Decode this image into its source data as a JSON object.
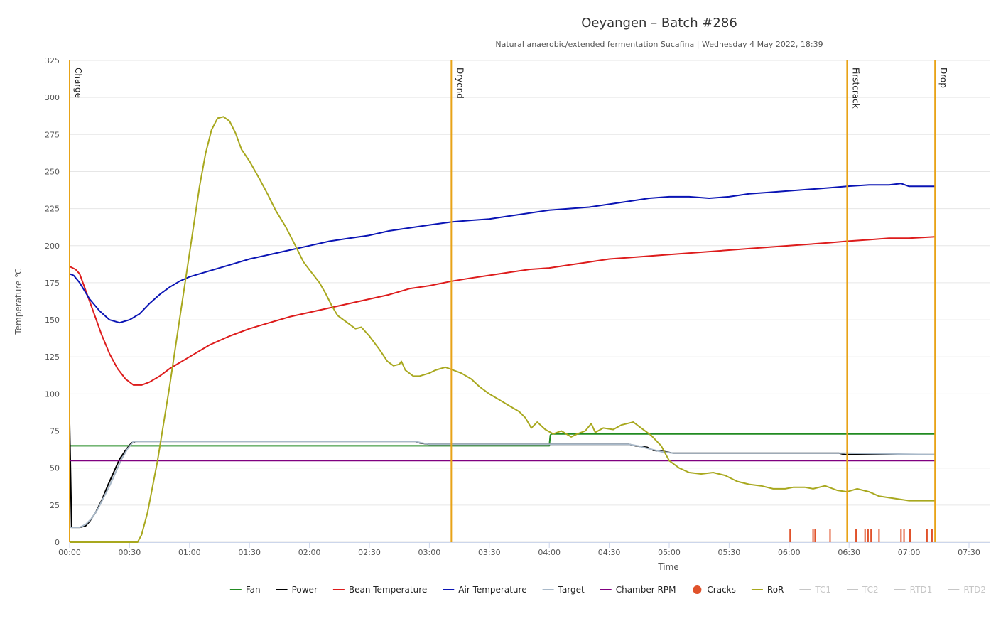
{
  "chart_data": {
    "type": "line",
    "title": "Oeyangen – Batch #286",
    "subtitle": "Natural anaerobic/extended fermentation Sucafina | Wednesday 4 May 2022, 18:39",
    "xlabel": "Time",
    "ylabel": "Temperature ℃",
    "xlim": [
      0,
      468
    ],
    "ylim": [
      0,
      325
    ],
    "x_ticks": [
      {
        "v": 0,
        "label": "00:00"
      },
      {
        "v": 30,
        "label": "00:30"
      },
      {
        "v": 60,
        "label": "01:00"
      },
      {
        "v": 90,
        "label": "01:30"
      },
      {
        "v": 120,
        "label": "02:00"
      },
      {
        "v": 150,
        "label": "02:30"
      },
      {
        "v": 180,
        "label": "03:00"
      },
      {
        "v": 210,
        "label": "03:30"
      },
      {
        "v": 240,
        "label": "04:00"
      },
      {
        "v": 270,
        "label": "04:30"
      },
      {
        "v": 300,
        "label": "05:00"
      },
      {
        "v": 330,
        "label": "05:30"
      },
      {
        "v": 360,
        "label": "06:00"
      },
      {
        "v": 390,
        "label": "06:30"
      },
      {
        "v": 420,
        "label": "07:00"
      },
      {
        "v": 450,
        "label": "07:30"
      }
    ],
    "y_ticks": [
      {
        "v": 0,
        "label": "0"
      },
      {
        "v": 25,
        "label": "25"
      },
      {
        "v": 50,
        "label": "50"
      },
      {
        "v": 75,
        "label": "75"
      },
      {
        "v": 100,
        "label": "100"
      },
      {
        "v": 125,
        "label": "125"
      },
      {
        "v": 150,
        "label": "150"
      },
      {
        "v": 175,
        "label": "175"
      },
      {
        "v": 200,
        "label": "200"
      },
      {
        "v": 225,
        "label": "225"
      },
      {
        "v": 250,
        "label": "250"
      },
      {
        "v": 275,
        "label": "275"
      },
      {
        "v": 300,
        "label": "300"
      },
      {
        "v": 325,
        "label": "325"
      }
    ],
    "grid": true,
    "legend_position": "bottom-right",
    "events": [
      {
        "label": "Charge",
        "x": 0
      },
      {
        "label": "Dryend",
        "x": 191
      },
      {
        "label": "Firstcrack",
        "x": 389
      },
      {
        "label": "Drop",
        "x": 433
      }
    ],
    "event_color": "#e8a317",
    "series": [
      {
        "name": "Fan",
        "color": "#228b22",
        "visible": true,
        "points": [
          [
            0,
            65
          ],
          [
            240,
            65
          ],
          [
            240.5,
            72
          ],
          [
            241,
            73
          ],
          [
            433,
            73
          ]
        ]
      },
      {
        "name": "Power",
        "color": "#000000",
        "visible": true,
        "points": [
          [
            0,
            80
          ],
          [
            1,
            10
          ],
          [
            5,
            10
          ],
          [
            8,
            11
          ],
          [
            10,
            14
          ],
          [
            13,
            20
          ],
          [
            16,
            28
          ],
          [
            19,
            38
          ],
          [
            22,
            47
          ],
          [
            25,
            56
          ],
          [
            28,
            62
          ],
          [
            31,
            67
          ],
          [
            33,
            68
          ],
          [
            173,
            68
          ],
          [
            175,
            67
          ],
          [
            180,
            66
          ],
          [
            237,
            66
          ],
          [
            270,
            66
          ],
          [
            280,
            66
          ],
          [
            283,
            65
          ],
          [
            289,
            64
          ],
          [
            292,
            62
          ],
          [
            298,
            61
          ],
          [
            302,
            60
          ],
          [
            385,
            60
          ],
          [
            388,
            59
          ],
          [
            433,
            59
          ]
        ]
      },
      {
        "name": "Bean Temperature",
        "color": "#dd1c1c",
        "visible": true,
        "points": [
          [
            0,
            186
          ],
          [
            3,
            184
          ],
          [
            5,
            181
          ],
          [
            8,
            170
          ],
          [
            12,
            155
          ],
          [
            16,
            140
          ],
          [
            20,
            127
          ],
          [
            24,
            117
          ],
          [
            28,
            110
          ],
          [
            32,
            106
          ],
          [
            36,
            106
          ],
          [
            40,
            108
          ],
          [
            45,
            112
          ],
          [
            50,
            117
          ],
          [
            60,
            125
          ],
          [
            70,
            133
          ],
          [
            80,
            139
          ],
          [
            90,
            144
          ],
          [
            100,
            148
          ],
          [
            110,
            152
          ],
          [
            120,
            155
          ],
          [
            130,
            158
          ],
          [
            140,
            161
          ],
          [
            150,
            164
          ],
          [
            160,
            167
          ],
          [
            170,
            171
          ],
          [
            180,
            173
          ],
          [
            191,
            176
          ],
          [
            200,
            178
          ],
          [
            210,
            180
          ],
          [
            220,
            182
          ],
          [
            230,
            184
          ],
          [
            240,
            185
          ],
          [
            250,
            187
          ],
          [
            260,
            189
          ],
          [
            270,
            191
          ],
          [
            280,
            192
          ],
          [
            290,
            193
          ],
          [
            300,
            194
          ],
          [
            320,
            196
          ],
          [
            340,
            198
          ],
          [
            360,
            200
          ],
          [
            380,
            202
          ],
          [
            389,
            203
          ],
          [
            400,
            204
          ],
          [
            410,
            205
          ],
          [
            420,
            205
          ],
          [
            433,
            206
          ]
        ]
      },
      {
        "name": "Air Temperature",
        "color": "#0a14b4",
        "visible": true,
        "points": [
          [
            0,
            181
          ],
          [
            2,
            180
          ],
          [
            5,
            175
          ],
          [
            10,
            164
          ],
          [
            15,
            156
          ],
          [
            20,
            150
          ],
          [
            25,
            148
          ],
          [
            30,
            150
          ],
          [
            35,
            154
          ],
          [
            40,
            161
          ],
          [
            45,
            167
          ],
          [
            50,
            172
          ],
          [
            55,
            176
          ],
          [
            60,
            179
          ],
          [
            70,
            183
          ],
          [
            80,
            187
          ],
          [
            90,
            191
          ],
          [
            100,
            194
          ],
          [
            110,
            197
          ],
          [
            120,
            200
          ],
          [
            130,
            203
          ],
          [
            140,
            205
          ],
          [
            150,
            207
          ],
          [
            160,
            210
          ],
          [
            170,
            212
          ],
          [
            180,
            214
          ],
          [
            191,
            216
          ],
          [
            200,
            217
          ],
          [
            210,
            218
          ],
          [
            220,
            220
          ],
          [
            230,
            222
          ],
          [
            240,
            224
          ],
          [
            250,
            225
          ],
          [
            260,
            226
          ],
          [
            270,
            228
          ],
          [
            280,
            230
          ],
          [
            290,
            232
          ],
          [
            300,
            233
          ],
          [
            310,
            233
          ],
          [
            320,
            232
          ],
          [
            330,
            233
          ],
          [
            340,
            235
          ],
          [
            350,
            236
          ],
          [
            360,
            237
          ],
          [
            370,
            238
          ],
          [
            380,
            239
          ],
          [
            389,
            240
          ],
          [
            400,
            241
          ],
          [
            410,
            241
          ],
          [
            416,
            242
          ],
          [
            420,
            240
          ],
          [
            425,
            240
          ],
          [
            433,
            240
          ]
        ]
      },
      {
        "name": "Target",
        "color": "#a9b9c9",
        "visible": true,
        "points": [
          [
            0,
            10
          ],
          [
            5,
            10
          ],
          [
            8,
            12
          ],
          [
            11,
            16
          ],
          [
            14,
            22
          ],
          [
            17,
            30
          ],
          [
            20,
            38
          ],
          [
            23,
            47
          ],
          [
            26,
            56
          ],
          [
            29,
            63
          ],
          [
            32,
            68
          ],
          [
            35,
            68
          ],
          [
            173,
            68
          ],
          [
            176,
            67
          ],
          [
            180,
            66
          ],
          [
            237,
            66
          ],
          [
            280,
            66
          ],
          [
            284,
            65
          ],
          [
            290,
            63
          ],
          [
            296,
            61
          ],
          [
            302,
            60
          ],
          [
            385,
            60
          ],
          [
            389,
            60
          ],
          [
            433,
            59
          ]
        ]
      },
      {
        "name": "Chamber RPM",
        "color": "#800080",
        "visible": true,
        "points": [
          [
            0,
            55
          ],
          [
            433,
            55
          ]
        ]
      },
      {
        "name": "Cracks",
        "color": "#e0522b",
        "visible": true,
        "marks": [
          360.5,
          372,
          373,
          380.5,
          393.5,
          398,
          399.5,
          401,
          405,
          416,
          417.5,
          420.5,
          429,
          431.5
        ],
        "mark_height": 9
      },
      {
        "name": "RoR",
        "color": "#a8a81e",
        "visible": true,
        "points": [
          [
            0,
            0
          ],
          [
            34,
            0
          ],
          [
            36,
            5
          ],
          [
            39,
            20
          ],
          [
            44,
            55
          ],
          [
            50,
            105
          ],
          [
            55,
            150
          ],
          [
            60,
            195
          ],
          [
            65,
            240
          ],
          [
            68,
            262
          ],
          [
            71,
            278
          ],
          [
            74,
            286
          ],
          [
            77,
            287
          ],
          [
            80,
            284
          ],
          [
            83,
            276
          ],
          [
            86,
            265
          ],
          [
            90,
            257
          ],
          [
            95,
            245
          ],
          [
            99,
            235
          ],
          [
            103,
            224
          ],
          [
            108,
            213
          ],
          [
            113,
            200
          ],
          [
            117,
            189
          ],
          [
            121,
            182
          ],
          [
            125,
            175
          ],
          [
            128,
            168
          ],
          [
            131,
            160
          ],
          [
            134,
            153
          ],
          [
            137,
            150
          ],
          [
            140,
            147
          ],
          [
            143,
            144
          ],
          [
            146,
            145
          ],
          [
            150,
            139
          ],
          [
            155,
            130
          ],
          [
            159,
            122
          ],
          [
            162,
            119
          ],
          [
            165,
            120
          ],
          [
            166,
            122
          ],
          [
            168,
            116
          ],
          [
            172,
            112
          ],
          [
            175,
            112
          ],
          [
            180,
            114
          ],
          [
            183,
            116
          ],
          [
            188,
            118
          ],
          [
            192,
            116
          ],
          [
            196,
            114
          ],
          [
            201,
            110
          ],
          [
            205,
            105
          ],
          [
            210,
            100
          ],
          [
            215,
            96
          ],
          [
            220,
            92
          ],
          [
            225,
            88
          ],
          [
            228,
            84
          ],
          [
            231,
            77
          ],
          [
            234,
            81
          ],
          [
            238,
            76
          ],
          [
            242,
            73
          ],
          [
            246,
            75
          ],
          [
            251,
            71
          ],
          [
            254,
            73
          ],
          [
            258,
            75
          ],
          [
            261,
            80
          ],
          [
            263,
            74
          ],
          [
            267,
            77
          ],
          [
            272,
            76
          ],
          [
            276,
            79
          ],
          [
            282,
            81
          ],
          [
            286,
            77
          ],
          [
            291,
            72
          ],
          [
            296,
            65
          ],
          [
            300,
            55
          ],
          [
            305,
            50
          ],
          [
            310,
            47
          ],
          [
            316,
            46
          ],
          [
            322,
            47
          ],
          [
            328,
            45
          ],
          [
            334,
            41
          ],
          [
            340,
            39
          ],
          [
            346,
            38
          ],
          [
            352,
            36
          ],
          [
            358,
            36
          ],
          [
            362,
            37
          ],
          [
            368,
            37
          ],
          [
            372,
            36
          ],
          [
            378,
            38
          ],
          [
            384,
            35
          ],
          [
            389,
            34
          ],
          [
            394,
            36
          ],
          [
            400,
            34
          ],
          [
            405,
            31
          ],
          [
            410,
            30
          ],
          [
            415,
            29
          ],
          [
            420,
            28
          ],
          [
            425,
            28
          ],
          [
            430,
            28
          ],
          [
            433,
            28
          ]
        ]
      },
      {
        "name": "TC1",
        "color": "#c6c6c6",
        "visible": false
      },
      {
        "name": "TC2",
        "color": "#c6c6c6",
        "visible": false
      },
      {
        "name": "RTD1",
        "color": "#c6c6c6",
        "visible": false
      },
      {
        "name": "RTD2",
        "color": "#c6c6c6",
        "visible": false
      }
    ]
  }
}
